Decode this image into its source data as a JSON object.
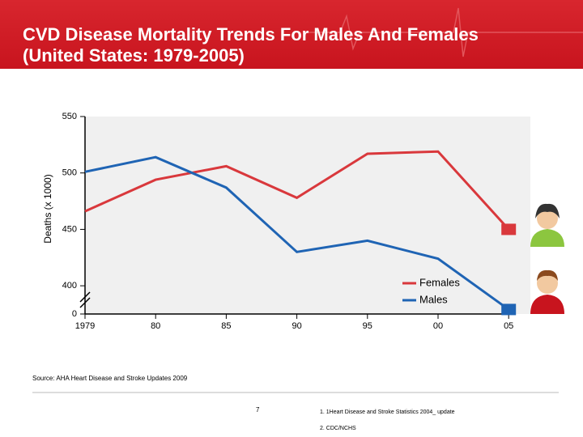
{
  "slide": {
    "title_line1": "CVD Disease Mortality Trends For Males And Females",
    "title_line2": "(United States: 1979-2005)",
    "source": "Source: AHA Heart Disease and Stroke Updates 2009",
    "page_number": "7",
    "footnotes": [
      "1. 1Heart Disease and Stroke Statistics 2004_ update",
      "2. CDC/NCHS"
    ]
  },
  "chart_data": {
    "type": "line",
    "y_label": "Deaths (x 1000)",
    "categories": [
      "1979",
      "80",
      "85",
      "90",
      "95",
      "00",
      "05"
    ],
    "series": [
      {
        "name": "Females",
        "color": "#d9383c",
        "values": [
          466,
          494,
          506,
          478,
          517,
          519,
          450
        ]
      },
      {
        "name": "Males",
        "color": "#1f64b4",
        "values": [
          501,
          514,
          487,
          430,
          440,
          424,
          379
        ]
      }
    ],
    "ylim": [
      375,
      550
    ],
    "yticks": [
      {
        "value": 0,
        "label": "0"
      },
      400,
      450,
      500,
      550
    ],
    "axis_break": true,
    "legend": "lower right"
  }
}
